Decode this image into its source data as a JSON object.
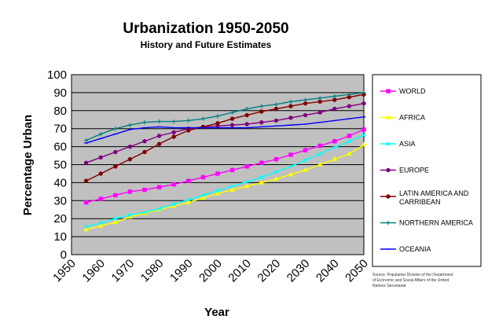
{
  "chart_data": {
    "type": "line",
    "title": "Urbanization 1950-2050",
    "subtitle": "History and Future Estimates",
    "xlabel": "Year",
    "ylabel": "Percentage Urban",
    "x": [
      1955,
      1960,
      1965,
      1970,
      1975,
      1980,
      1985,
      1990,
      1995,
      2000,
      2005,
      2010,
      2015,
      2020,
      2025,
      2030,
      2035,
      2040,
      2045,
      2050
    ],
    "x_ticks": [
      "1950",
      "1960",
      "1970",
      "1980",
      "1990",
      "2000",
      "2010",
      "2020",
      "2030",
      "2040",
      "2050"
    ],
    "ylim": [
      0,
      100
    ],
    "y_ticks": [
      "0",
      "10",
      "20",
      "30",
      "40",
      "50",
      "60",
      "70",
      "80",
      "90",
      "100"
    ],
    "grid": true,
    "legend_position": "right",
    "plot_background": "#c0c0c0",
    "series": [
      {
        "name": "WORLD",
        "color": "#ff00ff",
        "values": [
          29,
          31,
          33,
          35,
          36,
          37.5,
          39,
          41,
          43,
          45,
          47,
          49,
          51,
          53,
          55.5,
          58,
          60.5,
          63,
          66,
          69.5
        ]
      },
      {
        "name": "AFRICA",
        "color": "#ffff00",
        "values": [
          14,
          16,
          18,
          21,
          23,
          25,
          27,
          29,
          31.5,
          34,
          36,
          38,
          40,
          42,
          44.5,
          47,
          50,
          53,
          56,
          61
        ]
      },
      {
        "name": "ASIA",
        "color": "#00ffff",
        "values": [
          15.5,
          17.5,
          20,
          22,
          23.5,
          25.5,
          28,
          30.5,
          33,
          35.5,
          38,
          40.5,
          43,
          46,
          49,
          52.5,
          56,
          59.5,
          63,
          66.5
        ]
      },
      {
        "name": "EUROPE",
        "color": "#800080",
        "values": [
          51,
          54,
          57,
          60,
          63,
          66,
          68,
          70,
          71,
          71.5,
          72,
          72.5,
          73.5,
          74.5,
          76,
          77.5,
          79,
          81,
          82.5,
          84
        ]
      },
      {
        "name": "LATIN AMERICA AND CARRIBEAN",
        "color": "#800000",
        "values": [
          41,
          45,
          49,
          53,
          57,
          61.5,
          65.5,
          69,
          71,
          73,
          75.5,
          77.5,
          79.5,
          81,
          82.5,
          84,
          85,
          86,
          87.5,
          89
        ]
      },
      {
        "name": "NORTHERN AMERICA",
        "color": "#008080",
        "values": [
          63.5,
          67,
          70,
          72,
          73.5,
          74,
          74,
          74.5,
          75.5,
          77,
          79,
          81,
          82.5,
          83.5,
          85,
          86,
          87,
          88,
          89,
          90
        ]
      },
      {
        "name": "OCEANIA",
        "color": "#0000ff",
        "values": [
          62,
          64.5,
          67,
          69.5,
          70.5,
          71,
          70.5,
          70.5,
          70.5,
          70.5,
          70.5,
          70.5,
          71,
          71.5,
          72,
          72.5,
          73.5,
          74.5,
          75.5,
          76.5
        ]
      }
    ],
    "source": "Source: Population Division of the Department of Economic and Social Affairs of the United Nations Secretariat"
  }
}
